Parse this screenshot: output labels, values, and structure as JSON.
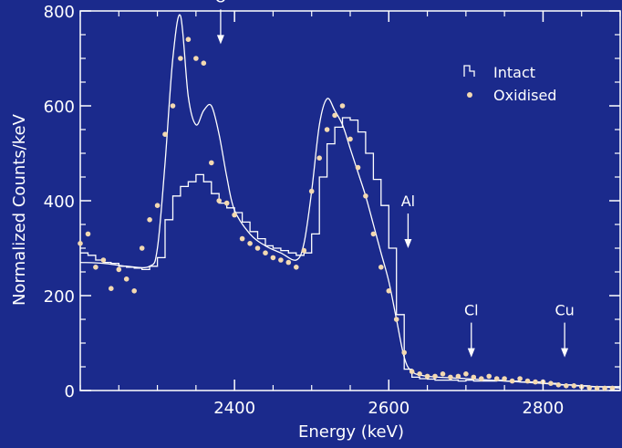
{
  "chart_data": {
    "type": "line",
    "title": "",
    "xlabel": "Energy (keV)",
    "ylabel": "Normalized Counts/keV",
    "xlim": [
      2200,
      2900
    ],
    "ylim": [
      0,
      800
    ],
    "xticks": [
      2400,
      2600,
      2800
    ],
    "yticks": [
      0,
      200,
      400,
      600,
      800
    ],
    "grid": false,
    "legend_position": "top-right",
    "colors": {
      "background": "#1b2a8c",
      "axes": "#ffffff",
      "lines": "#ffffff",
      "points": "#f3d9b1"
    },
    "series": [
      {
        "name": "Intact",
        "style": "step",
        "x": [
          2200,
          2210,
          2220,
          2230,
          2240,
          2250,
          2260,
          2270,
          2280,
          2290,
          2300,
          2310,
          2320,
          2330,
          2340,
          2350,
          2360,
          2370,
          2380,
          2390,
          2400,
          2410,
          2420,
          2430,
          2440,
          2450,
          2460,
          2470,
          2480,
          2490,
          2500,
          2510,
          2520,
          2530,
          2540,
          2550,
          2560,
          2570,
          2580,
          2590,
          2600,
          2610,
          2620,
          2630,
          2640,
          2650,
          2660,
          2670,
          2680,
          2690,
          2700,
          2710,
          2720,
          2730,
          2740,
          2750,
          2760,
          2770,
          2780,
          2790,
          2800,
          2810,
          2820,
          2830,
          2840,
          2850,
          2860,
          2870,
          2880,
          2890
        ],
        "y": [
          290,
          285,
          275,
          270,
          268,
          262,
          260,
          258,
          255,
          262,
          280,
          360,
          410,
          430,
          440,
          455,
          440,
          415,
          395,
          385,
          375,
          355,
          335,
          320,
          305,
          300,
          295,
          290,
          285,
          290,
          330,
          450,
          520,
          555,
          575,
          570,
          545,
          500,
          445,
          390,
          300,
          160,
          45,
          28,
          25,
          24,
          22,
          22,
          22,
          20,
          22,
          20,
          20,
          20,
          22,
          20,
          20,
          18,
          18,
          18,
          15,
          15,
          12,
          12,
          10,
          10,
          8,
          8,
          8,
          8
        ]
      },
      {
        "name": "",
        "style": "smooth",
        "x": [
          2200,
          2230,
          2260,
          2290,
          2300,
          2310,
          2320,
          2330,
          2340,
          2350,
          2360,
          2370,
          2380,
          2390,
          2400,
          2420,
          2440,
          2460,
          2480,
          2490,
          2500,
          2510,
          2520,
          2530,
          2540,
          2550,
          2560,
          2570,
          2580,
          2590,
          2600,
          2610,
          2620,
          2630,
          2650,
          2700,
          2750,
          2800,
          2850,
          2900
        ],
        "y": [
          270,
          268,
          262,
          262,
          300,
          480,
          700,
          790,
          620,
          560,
          590,
          600,
          540,
          450,
          380,
          330,
          305,
          290,
          275,
          310,
          420,
          560,
          615,
          590,
          560,
          510,
          460,
          410,
          350,
          290,
          230,
          150,
          70,
          40,
          30,
          25,
          20,
          15,
          10,
          5
        ]
      },
      {
        "name": "Oxidised",
        "style": "points",
        "x": [
          2200,
          2210,
          2220,
          2230,
          2240,
          2250,
          2260,
          2270,
          2280,
          2290,
          2300,
          2310,
          2320,
          2330,
          2340,
          2350,
          2360,
          2370,
          2380,
          2390,
          2400,
          2410,
          2420,
          2430,
          2440,
          2450,
          2460,
          2470,
          2480,
          2490,
          2500,
          2510,
          2520,
          2530,
          2540,
          2550,
          2560,
          2570,
          2580,
          2590,
          2600,
          2610,
          2620,
          2630,
          2640,
          2650,
          2660,
          2670,
          2680,
          2690,
          2700,
          2710,
          2720,
          2730,
          2740,
          2750,
          2760,
          2770,
          2780,
          2790,
          2800,
          2810,
          2820,
          2830,
          2840,
          2850,
          2860,
          2870,
          2880,
          2890
        ],
        "y": [
          310,
          330,
          260,
          275,
          215,
          255,
          235,
          210,
          300,
          360,
          390,
          540,
          600,
          700,
          740,
          700,
          690,
          480,
          400,
          395,
          370,
          320,
          310,
          300,
          290,
          280,
          275,
          270,
          260,
          295,
          420,
          490,
          550,
          580,
          600,
          530,
          470,
          410,
          330,
          260,
          210,
          150,
          80,
          40,
          35,
          30,
          30,
          35,
          28,
          30,
          35,
          28,
          25,
          30,
          25,
          25,
          20,
          25,
          20,
          18,
          18,
          15,
          12,
          10,
          10,
          8,
          6,
          5,
          5,
          5
        ]
      }
    ],
    "annotations": [
      {
        "label": "O",
        "x": 2382,
        "y": 730
      },
      {
        "label": "Al",
        "x": 2625,
        "y": 300
      },
      {
        "label": "Cl",
        "x": 2707,
        "y": 70
      },
      {
        "label": "Cu",
        "x": 2828,
        "y": 70
      }
    ]
  }
}
